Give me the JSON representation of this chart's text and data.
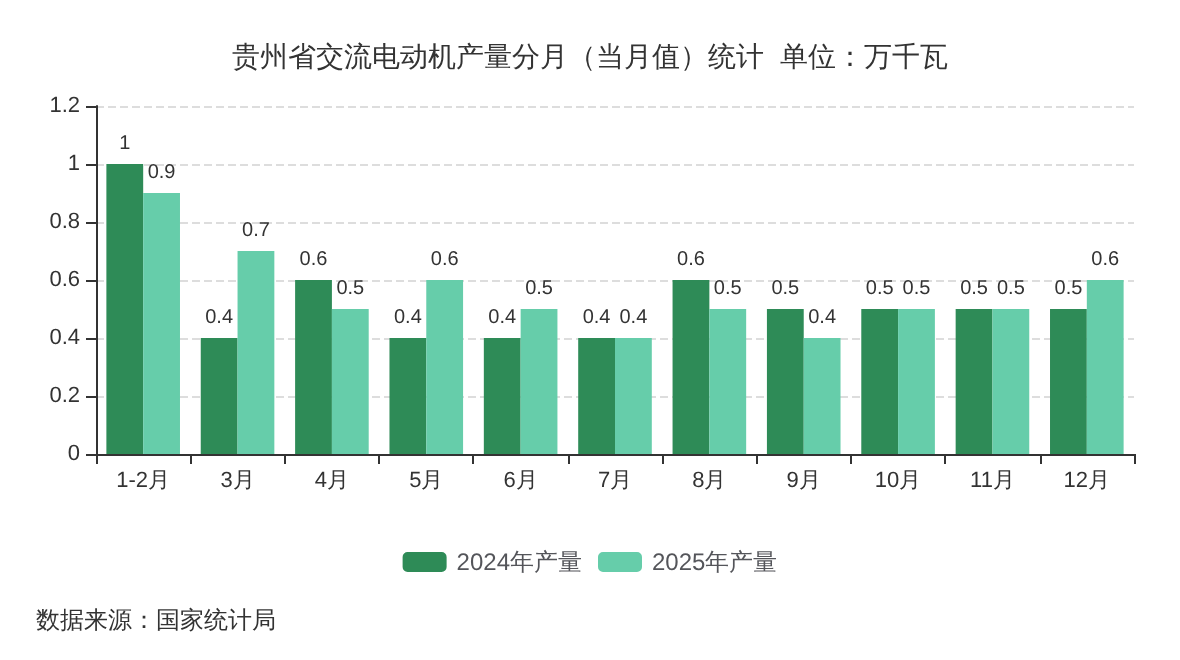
{
  "chart_data": {
    "type": "bar",
    "title": "贵州省交流电动机产量分月（当月值）统计  单位：万千瓦",
    "categories": [
      "1-2月",
      "3月",
      "4月",
      "5月",
      "6月",
      "7月",
      "8月",
      "9月",
      "10月",
      "11月",
      "12月"
    ],
    "series": [
      {
        "name": "2024年产量",
        "color": "#2e8b57",
        "values": [
          1,
          0.4,
          0.6,
          0.4,
          0.4,
          0.4,
          0.6,
          0.5,
          0.5,
          0.5,
          0.5
        ]
      },
      {
        "name": "2025年产量",
        "color": "#66cdaa",
        "values": [
          0.9,
          0.7,
          0.5,
          0.6,
          0.5,
          0.4,
          0.5,
          0.4,
          0.5,
          0.5,
          0.6
        ]
      }
    ],
    "ylim": [
      0,
      1.2
    ],
    "yticks": [
      0,
      0.2,
      0.4,
      0.6,
      0.8,
      1,
      1.2
    ],
    "grid": "y",
    "legend": "bottom",
    "data_labels": true,
    "annotations": [
      "数据来源：国家统计局"
    ]
  }
}
